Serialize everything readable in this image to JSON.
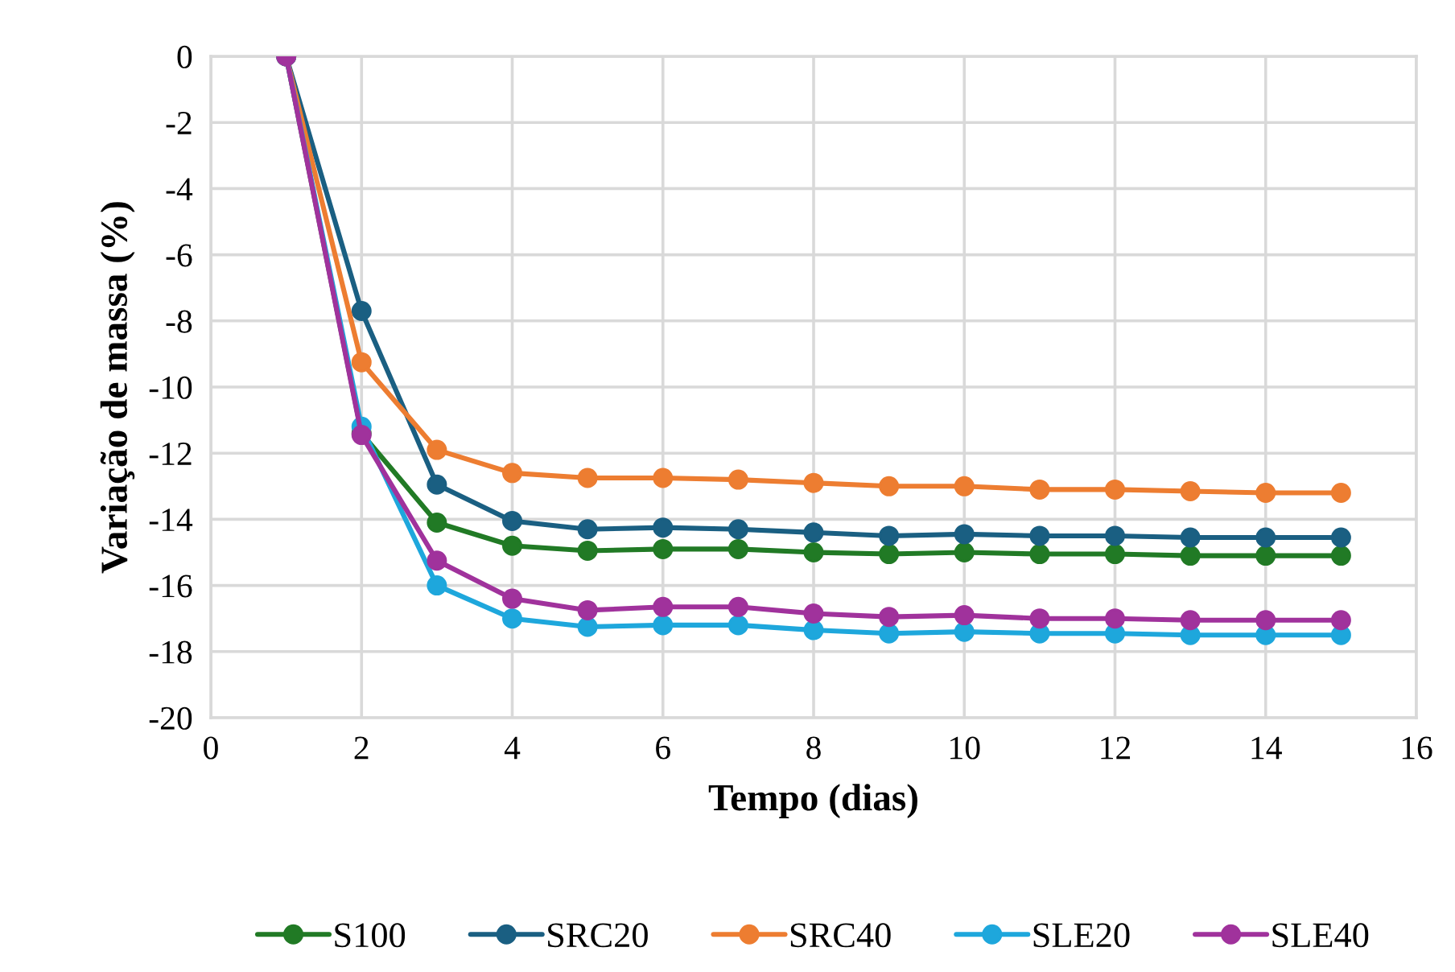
{
  "chart_data": {
    "type": "line",
    "xlabel": "Tempo (dias)",
    "ylabel": "Variação de massa (%)",
    "x": [
      1,
      2,
      3,
      4,
      5,
      6,
      7,
      8,
      9,
      10,
      11,
      12,
      13,
      14,
      15
    ],
    "xlim": [
      0,
      16
    ],
    "xticks": [
      0,
      2,
      4,
      6,
      8,
      10,
      12,
      14,
      16
    ],
    "ylim": [
      -20,
      0
    ],
    "yticks": [
      -20,
      -18,
      -16,
      -14,
      -12,
      -10,
      -8,
      -6,
      -4,
      -2,
      0
    ],
    "grid": true,
    "legend": "bottom",
    "marker": "circle",
    "line_style": "solid",
    "series": [
      {
        "name": "S100",
        "color": "#217a25",
        "values": [
          0,
          -11.4,
          -14.1,
          -14.8,
          -14.95,
          -14.9,
          -14.9,
          -15.0,
          -15.05,
          -15.0,
          -15.05,
          -15.05,
          -15.1,
          -15.1,
          -15.1
        ]
      },
      {
        "name": "SRC20",
        "color": "#1a5f82",
        "values": [
          0,
          -7.7,
          -12.95,
          -14.05,
          -14.3,
          -14.25,
          -14.3,
          -14.4,
          -14.5,
          -14.45,
          -14.5,
          -14.5,
          -14.55,
          -14.55,
          -14.55
        ]
      },
      {
        "name": "SRC40",
        "color": "#ed7d31",
        "values": [
          0,
          -9.25,
          -11.9,
          -12.6,
          -12.75,
          -12.75,
          -12.8,
          -12.9,
          -13.0,
          -13.0,
          -13.1,
          -13.1,
          -13.15,
          -13.2,
          -13.2
        ]
      },
      {
        "name": "SLE20",
        "color": "#1ea7dc",
        "values": [
          0,
          -11.2,
          -16.0,
          -17.0,
          -17.25,
          -17.2,
          -17.2,
          -17.35,
          -17.45,
          -17.4,
          -17.45,
          -17.45,
          -17.5,
          -17.5,
          -17.5
        ]
      },
      {
        "name": "SLE40",
        "color": "#a0329c",
        "values": [
          0,
          -11.45,
          -15.25,
          -16.4,
          -16.75,
          -16.65,
          -16.65,
          -16.85,
          -16.95,
          -16.9,
          -17.0,
          -17.0,
          -17.05,
          -17.05,
          -17.05
        ]
      }
    ]
  }
}
